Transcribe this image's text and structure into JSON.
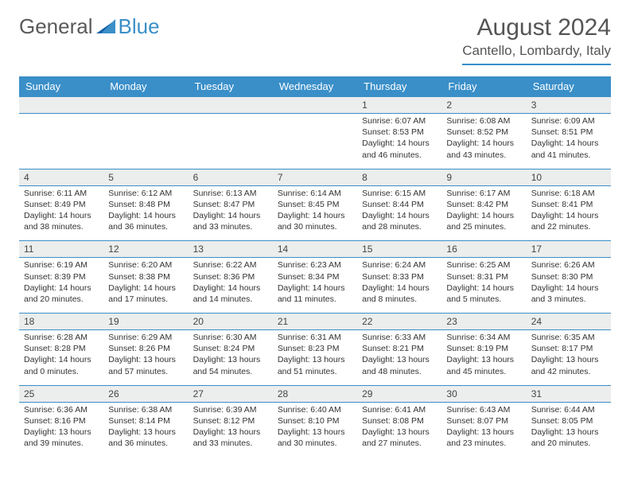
{
  "brand": {
    "general": "General",
    "blue": "Blue"
  },
  "title": "August 2024",
  "location": "Cantello, Lombardy, Italy",
  "colors": {
    "accent": "#3a8fc9",
    "bandBg": "#eceded",
    "text": "#333333",
    "headerText": "#555555"
  },
  "fonts": {
    "title_size": 30,
    "location_size": 17,
    "dayheader_size": 13,
    "body_size": 10.5
  },
  "dayHeaders": [
    "Sunday",
    "Monday",
    "Tuesday",
    "Wednesday",
    "Thursday",
    "Friday",
    "Saturday"
  ],
  "weeks": [
    [
      null,
      null,
      null,
      null,
      {
        "n": "1",
        "sr": "6:07 AM",
        "ss": "8:53 PM",
        "dl": "14 hours and 46 minutes."
      },
      {
        "n": "2",
        "sr": "6:08 AM",
        "ss": "8:52 PM",
        "dl": "14 hours and 43 minutes."
      },
      {
        "n": "3",
        "sr": "6:09 AM",
        "ss": "8:51 PM",
        "dl": "14 hours and 41 minutes."
      }
    ],
    [
      {
        "n": "4",
        "sr": "6:11 AM",
        "ss": "8:49 PM",
        "dl": "14 hours and 38 minutes."
      },
      {
        "n": "5",
        "sr": "6:12 AM",
        "ss": "8:48 PM",
        "dl": "14 hours and 36 minutes."
      },
      {
        "n": "6",
        "sr": "6:13 AM",
        "ss": "8:47 PM",
        "dl": "14 hours and 33 minutes."
      },
      {
        "n": "7",
        "sr": "6:14 AM",
        "ss": "8:45 PM",
        "dl": "14 hours and 30 minutes."
      },
      {
        "n": "8",
        "sr": "6:15 AM",
        "ss": "8:44 PM",
        "dl": "14 hours and 28 minutes."
      },
      {
        "n": "9",
        "sr": "6:17 AM",
        "ss": "8:42 PM",
        "dl": "14 hours and 25 minutes."
      },
      {
        "n": "10",
        "sr": "6:18 AM",
        "ss": "8:41 PM",
        "dl": "14 hours and 22 minutes."
      }
    ],
    [
      {
        "n": "11",
        "sr": "6:19 AM",
        "ss": "8:39 PM",
        "dl": "14 hours and 20 minutes."
      },
      {
        "n": "12",
        "sr": "6:20 AM",
        "ss": "8:38 PM",
        "dl": "14 hours and 17 minutes."
      },
      {
        "n": "13",
        "sr": "6:22 AM",
        "ss": "8:36 PM",
        "dl": "14 hours and 14 minutes."
      },
      {
        "n": "14",
        "sr": "6:23 AM",
        "ss": "8:34 PM",
        "dl": "14 hours and 11 minutes."
      },
      {
        "n": "15",
        "sr": "6:24 AM",
        "ss": "8:33 PM",
        "dl": "14 hours and 8 minutes."
      },
      {
        "n": "16",
        "sr": "6:25 AM",
        "ss": "8:31 PM",
        "dl": "14 hours and 5 minutes."
      },
      {
        "n": "17",
        "sr": "6:26 AM",
        "ss": "8:30 PM",
        "dl": "14 hours and 3 minutes."
      }
    ],
    [
      {
        "n": "18",
        "sr": "6:28 AM",
        "ss": "8:28 PM",
        "dl": "14 hours and 0 minutes."
      },
      {
        "n": "19",
        "sr": "6:29 AM",
        "ss": "8:26 PM",
        "dl": "13 hours and 57 minutes."
      },
      {
        "n": "20",
        "sr": "6:30 AM",
        "ss": "8:24 PM",
        "dl": "13 hours and 54 minutes."
      },
      {
        "n": "21",
        "sr": "6:31 AM",
        "ss": "8:23 PM",
        "dl": "13 hours and 51 minutes."
      },
      {
        "n": "22",
        "sr": "6:33 AM",
        "ss": "8:21 PM",
        "dl": "13 hours and 48 minutes."
      },
      {
        "n": "23",
        "sr": "6:34 AM",
        "ss": "8:19 PM",
        "dl": "13 hours and 45 minutes."
      },
      {
        "n": "24",
        "sr": "6:35 AM",
        "ss": "8:17 PM",
        "dl": "13 hours and 42 minutes."
      }
    ],
    [
      {
        "n": "25",
        "sr": "6:36 AM",
        "ss": "8:16 PM",
        "dl": "13 hours and 39 minutes."
      },
      {
        "n": "26",
        "sr": "6:38 AM",
        "ss": "8:14 PM",
        "dl": "13 hours and 36 minutes."
      },
      {
        "n": "27",
        "sr": "6:39 AM",
        "ss": "8:12 PM",
        "dl": "13 hours and 33 minutes."
      },
      {
        "n": "28",
        "sr": "6:40 AM",
        "ss": "8:10 PM",
        "dl": "13 hours and 30 minutes."
      },
      {
        "n": "29",
        "sr": "6:41 AM",
        "ss": "8:08 PM",
        "dl": "13 hours and 27 minutes."
      },
      {
        "n": "30",
        "sr": "6:43 AM",
        "ss": "8:07 PM",
        "dl": "13 hours and 23 minutes."
      },
      {
        "n": "31",
        "sr": "6:44 AM",
        "ss": "8:05 PM",
        "dl": "13 hours and 20 minutes."
      }
    ]
  ],
  "labels": {
    "sunrise": "Sunrise: ",
    "sunset": "Sunset: ",
    "daylight": "Daylight: "
  }
}
